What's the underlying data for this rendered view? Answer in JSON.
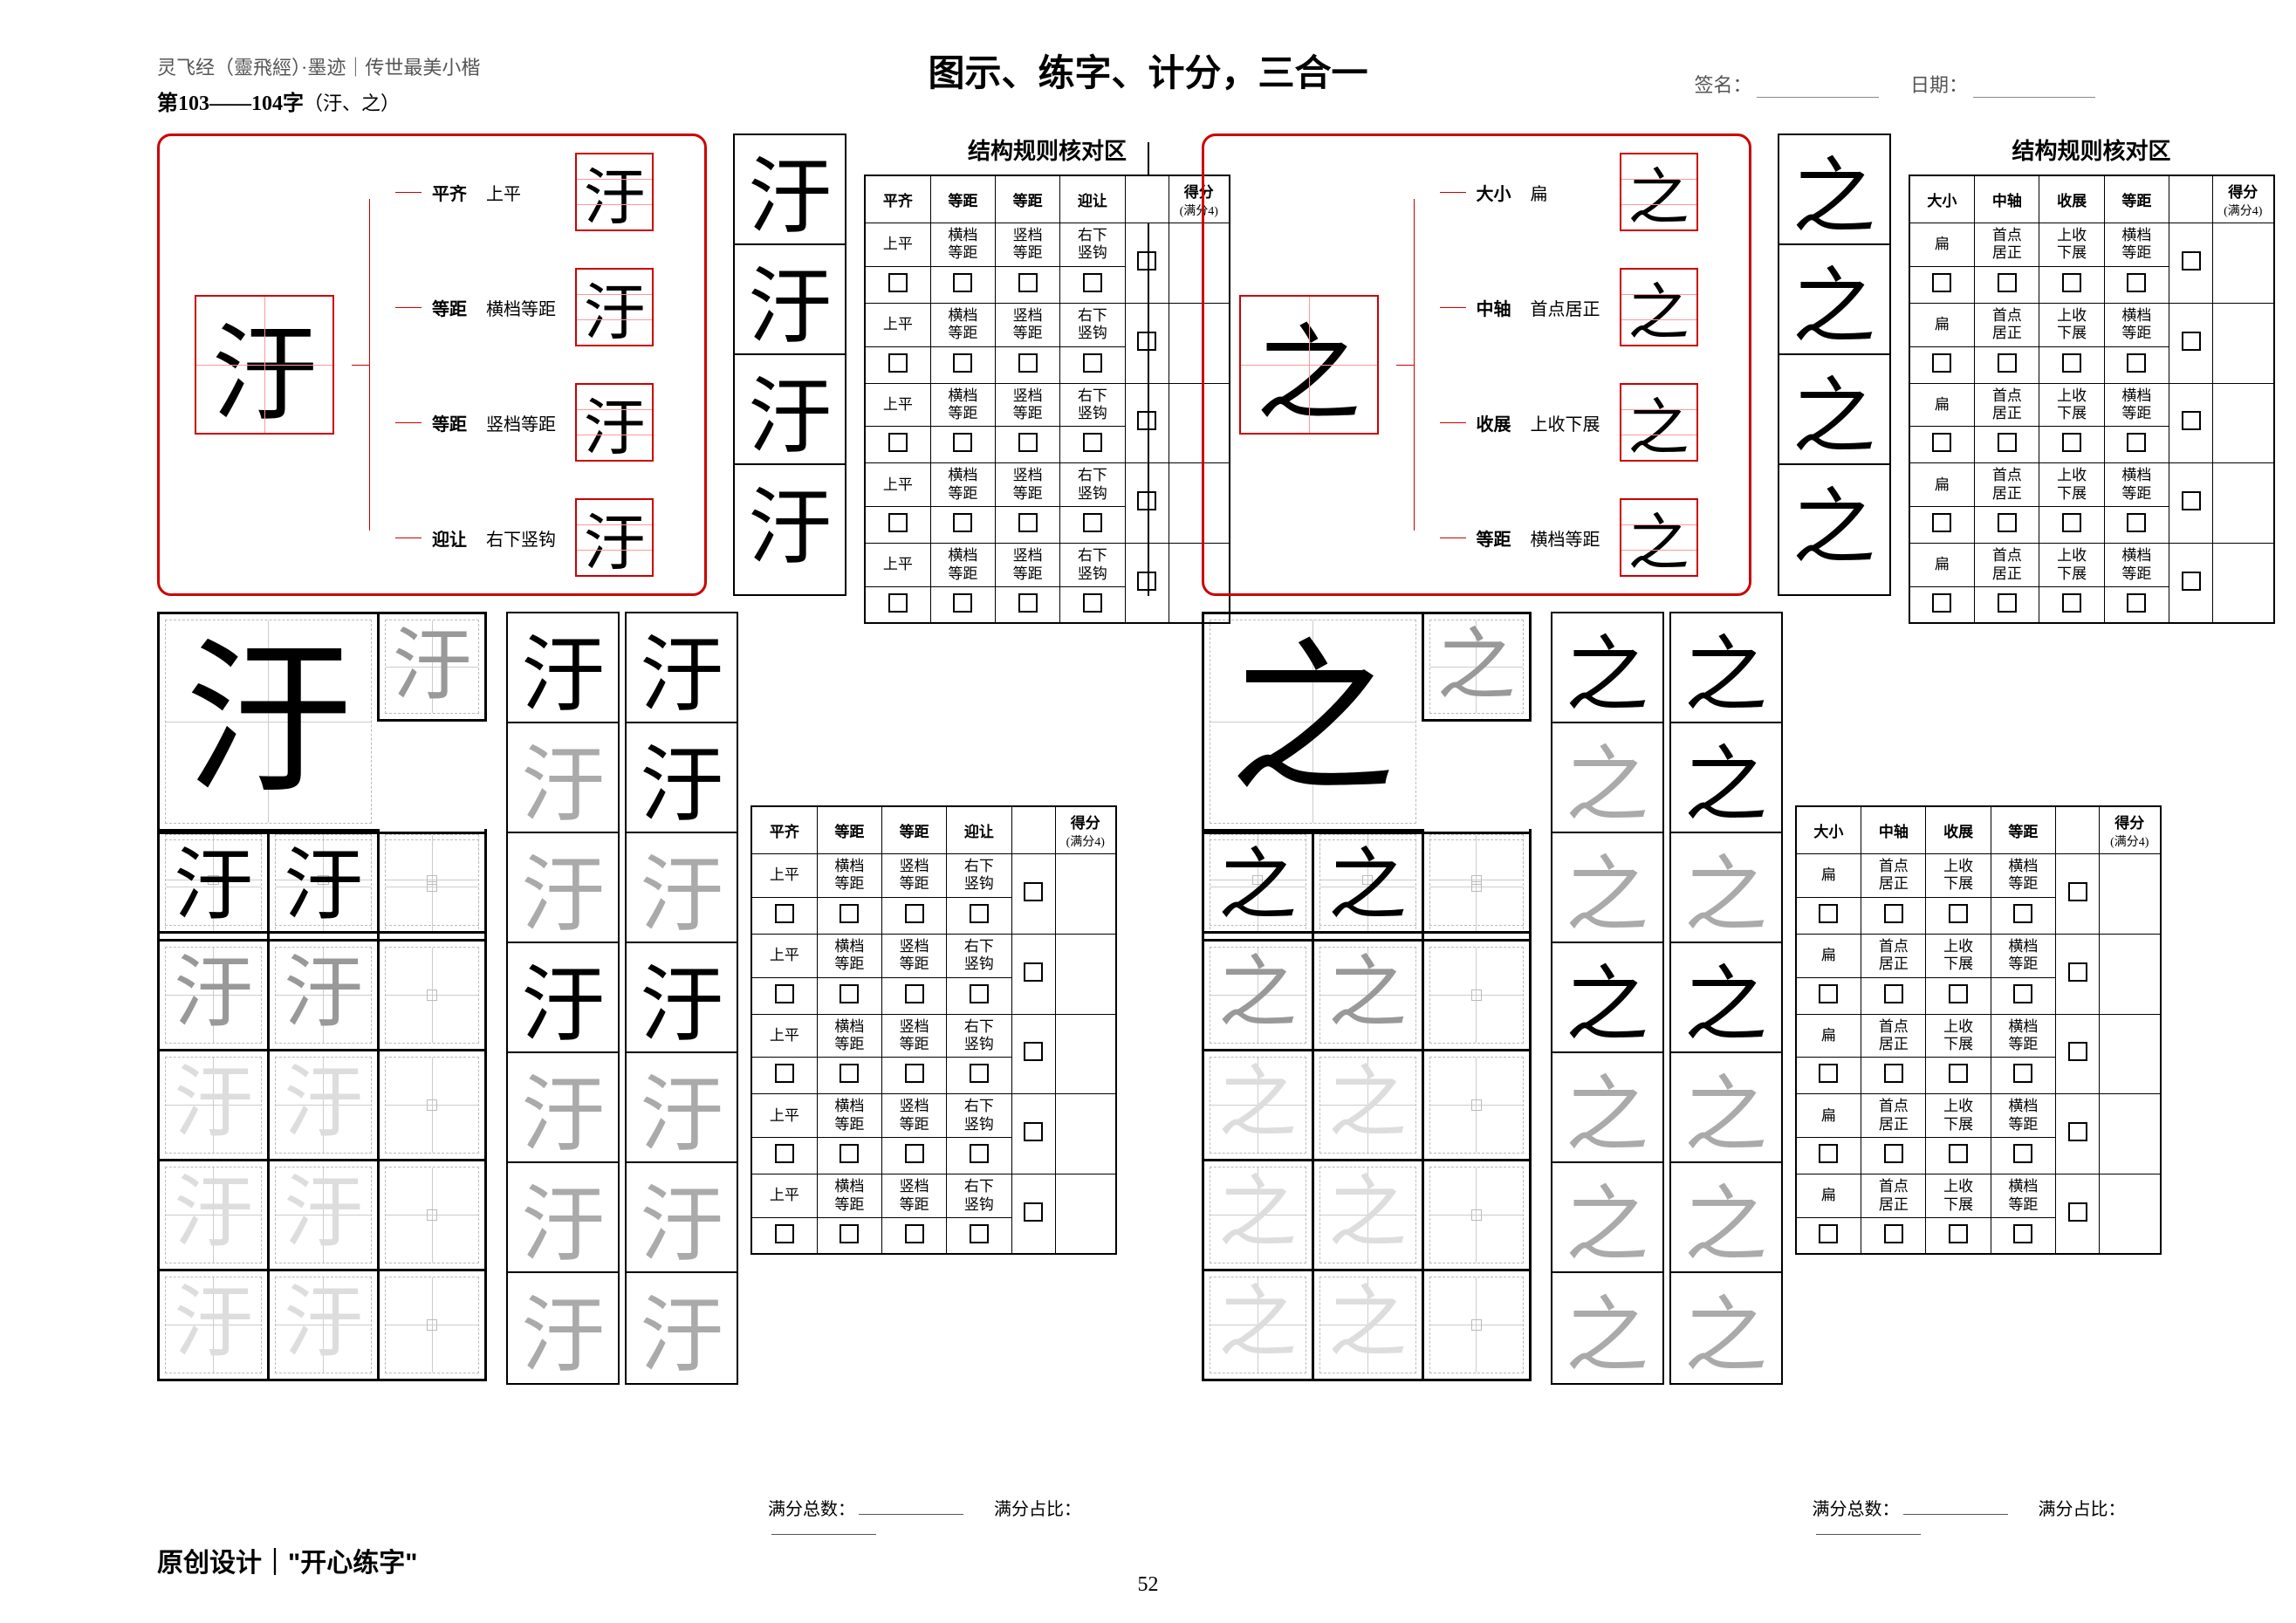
{
  "header": {
    "source": "灵飞经（靈飛經）",
    "source_suffix": "·墨迹｜传世最美小楷",
    "range_prefix": "第",
    "range": "103——104字",
    "range_chars": "（汙、之）",
    "title": "图示、练字、计分，三合一",
    "sign_label": "签名：",
    "date_label": "日期："
  },
  "left": {
    "char": "汙",
    "struct_items": [
      {
        "label": "平齐",
        "note": "上平"
      },
      {
        "label": "等距",
        "note": "横档等距"
      },
      {
        "label": "等距",
        "note": "竖档等距"
      },
      {
        "label": "迎让",
        "note": "右下竖钩"
      }
    ],
    "score_title": "结构规则核对区",
    "score_headers": [
      "平齐",
      "等距",
      "等距",
      "迎让"
    ],
    "score_cells": [
      "上平",
      "横档\n等距",
      "竖档\n等距",
      "右下\n竖钩"
    ],
    "score_label": "得分",
    "score_full": "(满分4)"
  },
  "right": {
    "char": "之",
    "struct_items": [
      {
        "label": "大小",
        "note": "扁"
      },
      {
        "label": "中轴",
        "note": "首点居正"
      },
      {
        "label": "收展",
        "note": "上收下展"
      },
      {
        "label": "等距",
        "note": "横档等距"
      }
    ],
    "score_title": "结构规则核对区",
    "score_headers": [
      "大小",
      "中轴",
      "收展",
      "等距"
    ],
    "score_cells": [
      "扁",
      "首点\n居正",
      "上收\n下展",
      "横档\n等距"
    ],
    "score_label": "得分",
    "score_full": "(满分4)"
  },
  "totals": {
    "total": "满分总数：",
    "ratio": "满分占比："
  },
  "footer": {
    "text": "原创设计｜",
    "quote": "\"开心练字\""
  },
  "page_number": "52"
}
